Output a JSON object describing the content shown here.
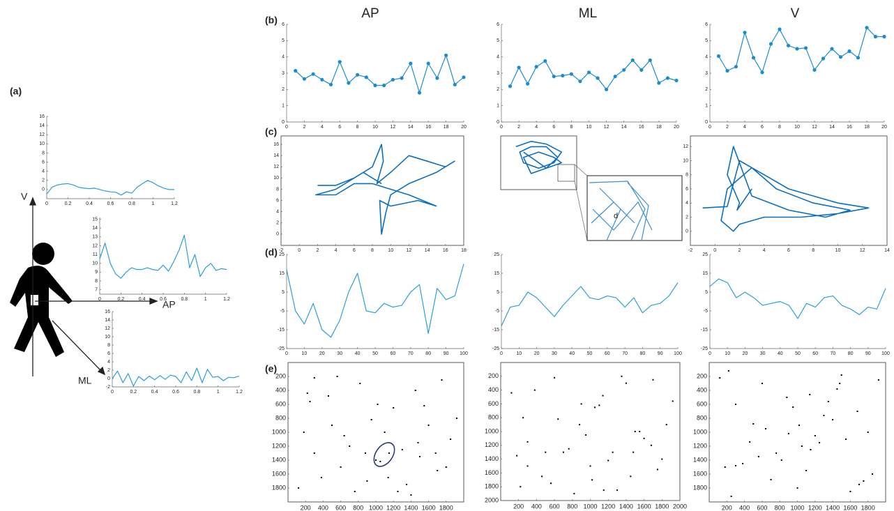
{
  "panel_labels": [
    "(a)",
    "(b)",
    "(c)",
    "(d)",
    "(e)"
  ],
  "column_titles": [
    "AP",
    "ML",
    "V"
  ],
  "axis_labels": [
    "V",
    "AP",
    "ML"
  ],
  "chart_data": [
    {
      "type": "line",
      "color": "#2a9fd6",
      "x": [
        0,
        0.05,
        0.1,
        0.15,
        0.2,
        0.25,
        0.3,
        0.35,
        0.4,
        0.45,
        0.5,
        0.55,
        0.6,
        0.65,
        0.7,
        0.75,
        0.8,
        0.85,
        0.9,
        0.95,
        1,
        1.05,
        1.1,
        1.15,
        1.2
      ],
      "values": [
        -1,
        0.5,
        1,
        1.2,
        1.3,
        1,
        0.5,
        0.3,
        0.2,
        0.3,
        0,
        -0.3,
        -0.5,
        -0.6,
        -1.2,
        -0.5,
        -0.8,
        0.5,
        1.3,
        2,
        1.5,
        0.8,
        0.3,
        0,
        0
      ],
      "xlim": [
        0,
        1.2
      ],
      "ylim": [
        -2,
        16
      ],
      "xticks": [
        0,
        0.2,
        0.4,
        0.6,
        0.8,
        1,
        1.2
      ],
      "yticks": [
        0,
        2,
        4,
        6,
        8,
        10,
        12,
        14,
        16
      ]
    },
    {
      "type": "line",
      "color": "#2a9fd6",
      "x": [
        0,
        0.05,
        0.1,
        0.15,
        0.2,
        0.25,
        0.3,
        0.35,
        0.4,
        0.45,
        0.5,
        0.55,
        0.6,
        0.65,
        0.7,
        0.75,
        0.8,
        0.85,
        0.9,
        0.95,
        1,
        1.05,
        1.1,
        1.15,
        1.2
      ],
      "values": [
        10.5,
        12.3,
        10,
        8.8,
        8.3,
        9,
        9.5,
        9.3,
        9.3,
        9.5,
        9.3,
        9.2,
        9.8,
        9.1,
        10.2,
        11.5,
        13.2,
        9.5,
        11,
        8.5,
        9.5,
        10,
        9.2,
        9.4,
        9.3
      ],
      "xlim": [
        0,
        1.2
      ],
      "ylim": [
        6.5,
        15.2
      ],
      "xticks": [
        0,
        0.2,
        0.4,
        0.6,
        0.8,
        1,
        1.2
      ],
      "yticks": [
        7,
        8,
        9,
        10,
        11,
        12,
        13,
        14,
        15
      ]
    },
    {
      "type": "line",
      "color": "#2a9fd6",
      "x": [
        0,
        0.05,
        0.1,
        0.15,
        0.2,
        0.25,
        0.3,
        0.35,
        0.4,
        0.45,
        0.5,
        0.55,
        0.6,
        0.65,
        0.7,
        0.75,
        0.8,
        0.85,
        0.9,
        0.95,
        1,
        1.05,
        1.1,
        1.15,
        1.2
      ],
      "values": [
        0,
        1.8,
        -1,
        1.2,
        -1.8,
        0.5,
        -0.5,
        0.6,
        -0.3,
        0.7,
        -0.2,
        0.8,
        0.5,
        -1,
        1.6,
        -0.5,
        2.5,
        -1,
        2.2,
        0.3,
        0.5,
        -0.5,
        0.3,
        0.2,
        0.6
      ],
      "xlim": [
        0,
        1.2
      ],
      "ylim": [
        -2,
        16
      ],
      "xticks": [
        0,
        0.2,
        0.4,
        0.6,
        0.8,
        1,
        1.2
      ],
      "yticks": [
        -2,
        0,
        2,
        4,
        6,
        8,
        10,
        12,
        14,
        16
      ]
    },
    {
      "type": "line",
      "markers": true,
      "color": "#1a8ccf",
      "x": [
        1,
        2,
        3,
        4,
        5,
        6,
        7,
        8,
        9,
        10,
        11,
        12,
        13,
        14,
        15,
        16,
        17,
        18,
        19,
        20
      ],
      "values": [
        3.15,
        2.65,
        2.95,
        2.6,
        2.3,
        3.7,
        2.4,
        2.9,
        2.75,
        2.25,
        2.25,
        2.6,
        2.7,
        3.6,
        1.8,
        3.6,
        2.7,
        4.1,
        2.3,
        2.75
      ],
      "xlim": [
        0,
        20
      ],
      "ylim": [
        0,
        6
      ],
      "xticks": [
        0,
        2,
        4,
        6,
        8,
        10,
        12,
        14,
        16,
        18,
        20
      ],
      "yticks": [
        0,
        1,
        2,
        3,
        4,
        5,
        6
      ]
    },
    {
      "type": "line",
      "markers": true,
      "color": "#1a8ccf",
      "x": [
        1,
        2,
        3,
        4,
        5,
        6,
        7,
        8,
        9,
        10,
        11,
        12,
        13,
        14,
        15,
        16,
        17,
        18,
        19,
        20
      ],
      "values": [
        2.2,
        3.35,
        2.35,
        3.4,
        3.75,
        2.8,
        2.85,
        2.95,
        2.5,
        3.05,
        2.7,
        2.0,
        2.8,
        3.2,
        3.8,
        3.2,
        3.8,
        2.4,
        2.7,
        2.55
      ],
      "xlim": [
        0,
        20
      ],
      "ylim": [
        0,
        6
      ],
      "xticks": [
        0,
        2,
        4,
        6,
        8,
        10,
        12,
        14,
        16,
        18,
        20
      ],
      "yticks": [
        0,
        1,
        2,
        3,
        4,
        5,
        6
      ]
    },
    {
      "type": "line",
      "markers": true,
      "color": "#1a8ccf",
      "x": [
        1,
        2,
        3,
        4,
        5,
        6,
        7,
        8,
        9,
        10,
        11,
        12,
        13,
        14,
        15,
        16,
        17,
        18,
        19,
        20
      ],
      "values": [
        4.05,
        3.15,
        3.4,
        5.5,
        3.95,
        3.05,
        4.8,
        5.7,
        4.7,
        4.5,
        4.55,
        3.2,
        3.9,
        4.5,
        4.0,
        4.35,
        3.95,
        5.8,
        5.25,
        5.25
      ],
      "xlim": [
        0,
        20
      ],
      "ylim": [
        0,
        6
      ],
      "xticks": [
        0,
        2,
        4,
        6,
        8,
        10,
        12,
        14,
        16,
        18,
        20
      ],
      "yticks": [
        0,
        1,
        2,
        3,
        4,
        5,
        6
      ]
    },
    {
      "type": "line",
      "box": true,
      "color": "#0b6fc0",
      "x": [
        2,
        4,
        6,
        8,
        9,
        9.2,
        8.5,
        10,
        12,
        14,
        16,
        17,
        15,
        12,
        10,
        9.5,
        9,
        8.8,
        10,
        13,
        15,
        12,
        10,
        8,
        6,
        4,
        1.8,
        4,
        7,
        9
      ],
      "values": [
        8.7,
        8.7,
        10,
        12,
        16,
        13,
        9,
        11,
        14,
        13,
        12,
        13,
        11,
        9,
        7,
        4,
        0,
        6,
        5,
        6,
        5,
        7,
        8,
        9,
        9,
        7,
        7,
        8,
        11,
        9
      ],
      "xlim": [
        -2,
        18
      ],
      "ylim": [
        -2,
        17.5
      ],
      "xticks": [
        -2,
        0,
        2,
        4,
        6,
        8,
        10,
        12,
        14,
        16,
        18
      ],
      "yticks": [
        0,
        2,
        4,
        6,
        8,
        10,
        12,
        14,
        16
      ]
    },
    {
      "type": "line",
      "box": true,
      "color": "#0b6fc0",
      "annotation": "d",
      "x": [
        2,
        4,
        6,
        8,
        7,
        5,
        3,
        2.5,
        4,
        6,
        7.5,
        6,
        4,
        3,
        5,
        7,
        8,
        6,
        4,
        3
      ],
      "values": [
        8,
        9,
        8.5,
        7,
        5,
        4,
        5,
        7,
        8,
        8,
        6,
        4,
        3,
        6,
        7,
        6,
        5,
        4,
        6,
        7
      ],
      "xlim": [
        0,
        10
      ],
      "ylim": [
        0,
        10
      ]
    },
    {
      "type": "line",
      "box": true,
      "color": "#0b6fc0",
      "x": [
        -1,
        1,
        2,
        4,
        6,
        8,
        10,
        12.5,
        10,
        7,
        4,
        2,
        1.5,
        0.5,
        1,
        3,
        5,
        8,
        11,
        9,
        6,
        3,
        1.5,
        1,
        2,
        1.8,
        3
      ],
      "values": [
        3.3,
        3.5,
        10,
        8,
        6,
        5,
        4,
        3.3,
        2.5,
        2,
        2,
        1,
        0,
        1.5,
        6,
        9,
        6,
        4,
        3,
        2,
        3,
        5,
        12,
        8,
        4,
        3,
        6
      ],
      "xlim": [
        -2,
        14
      ],
      "ylim": [
        -2,
        13.5
      ],
      "xticks": [
        -2,
        0,
        2,
        4,
        6,
        8,
        10,
        12,
        14
      ],
      "yticks": [
        0,
        2,
        4,
        6,
        8,
        10,
        12
      ]
    },
    {
      "type": "line",
      "color": "#2a9fd6",
      "x": [
        0,
        5,
        10,
        15,
        20,
        25,
        30,
        35,
        40,
        45,
        50,
        55,
        60,
        65,
        70,
        75,
        80,
        85,
        90,
        95,
        100
      ],
      "values": [
        17,
        -5,
        -12,
        -1,
        -15,
        -19,
        -10,
        5,
        15,
        -5,
        -6,
        -1,
        -3,
        -2,
        5,
        9,
        -17,
        7,
        1,
        3,
        20
      ],
      "xlim": [
        0,
        100
      ],
      "ylim": [
        -25,
        25
      ],
      "xticks": [
        0,
        10,
        20,
        30,
        40,
        50,
        60,
        70,
        80,
        90,
        100
      ],
      "yticks": [
        -25,
        -15,
        -5,
        5,
        15,
        25
      ]
    },
    {
      "type": "line",
      "color": "#2a9fd6",
      "x": [
        0,
        5,
        10,
        15,
        20,
        25,
        30,
        35,
        40,
        45,
        50,
        55,
        60,
        65,
        70,
        75,
        80,
        85,
        90,
        95,
        100
      ],
      "values": [
        -13,
        -3,
        -2,
        5,
        2,
        -3,
        -8,
        -2,
        3,
        8,
        2,
        1,
        3,
        2,
        -3,
        2,
        -6,
        -2,
        -1,
        3,
        10
      ],
      "xlim": [
        0,
        100
      ],
      "ylim": [
        -25,
        25
      ],
      "xticks": [
        0,
        10,
        20,
        30,
        40,
        50,
        60,
        70,
        80,
        90,
        100
      ],
      "yticks": [
        -25,
        -15,
        -5,
        5,
        15,
        25
      ]
    },
    {
      "type": "line",
      "color": "#2a9fd6",
      "x": [
        0,
        5,
        10,
        15,
        20,
        25,
        30,
        35,
        40,
        45,
        50,
        55,
        60,
        65,
        70,
        75,
        80,
        85,
        90,
        95,
        100
      ],
      "values": [
        8,
        12,
        10,
        2,
        5,
        2,
        -2,
        -1,
        0,
        -2,
        -9,
        -1,
        -3,
        2,
        3,
        -2,
        -4,
        -7,
        -3,
        -4,
        7
      ],
      "xlim": [
        0,
        100
      ],
      "ylim": [
        -25,
        25
      ],
      "xticks": [
        0,
        10,
        20,
        30,
        40,
        50,
        60,
        70,
        80,
        90,
        100
      ],
      "yticks": [
        -25,
        -15,
        -5,
        5,
        15,
        25
      ]
    },
    {
      "type": "scatter",
      "box": true,
      "y_inverted": true,
      "color": "#000000",
      "x": [
        120,
        250,
        300,
        460,
        500,
        600,
        700,
        820,
        900,
        950,
        1000,
        1100,
        1150,
        1200,
        1300,
        1350,
        1450,
        1500,
        1600,
        1700,
        1750,
        1850,
        180,
        380,
        560,
        760,
        1050,
        1250,
        1550,
        1800,
        640,
        1020,
        1400,
        1680,
        300,
        880,
        1140,
        1480,
        1920,
        220
      ],
      "values": [
        1800,
        560,
        1300,
        480,
        900,
        1500,
        1200,
        300,
        1700,
        820,
        1400,
        1000,
        1300,
        650,
        1250,
        1750,
        400,
        1350,
        900,
        1550,
        250,
        1100,
        1000,
        1650,
        200,
        1850,
        1420,
        1850,
        620,
        1500,
        1050,
        600,
        1900,
        1300,
        220,
        1300,
        1650,
        1150,
        800,
        440
      ],
      "xlim": [
        0,
        2000
      ],
      "ylim": [
        0,
        2000
      ],
      "xticks": [
        200,
        400,
        600,
        800,
        1000,
        1200,
        1400,
        1600,
        1800
      ],
      "yticks": [
        200,
        400,
        600,
        800,
        1000,
        1200,
        1400,
        1600,
        1800
      ]
    },
    {
      "type": "scatter",
      "box": true,
      "y_inverted": true,
      "color": "#000000",
      "x": [
        120,
        250,
        300,
        460,
        500,
        600,
        700,
        820,
        900,
        950,
        1000,
        1100,
        1150,
        1200,
        1300,
        1350,
        1450,
        1500,
        1600,
        1700,
        1750,
        1850,
        180,
        380,
        560,
        760,
        1050,
        1250,
        1550,
        1800,
        640,
        1020,
        1400,
        1680,
        300,
        880,
        1140,
        1480,
        1920,
        220
      ],
      "values": [
        440,
        800,
        1150,
        1650,
        1300,
        220,
        1300,
        1900,
        600,
        1050,
        1500,
        620,
        1850,
        1420,
        1850,
        200,
        1650,
        1000,
        1100,
        250,
        1550,
        900,
        1350,
        400,
        1750,
        1250,
        650,
        1300,
        1000,
        1400,
        820,
        1700,
        300,
        1200,
        1500,
        900,
        480,
        1300,
        560,
        1800
      ],
      "xlim": [
        0,
        2000
      ],
      "ylim": [
        0,
        2000
      ],
      "xticks": [
        200,
        400,
        600,
        800,
        1000,
        1200,
        1400,
        1600,
        1800,
        2000
      ],
      "yticks": [
        200,
        400,
        600,
        800,
        1000,
        1200,
        1400,
        1600,
        1800,
        2000
      ]
    },
    {
      "type": "scatter",
      "box": true,
      "y_inverted": true,
      "color": "#000000",
      "x": [
        120,
        250,
        300,
        460,
        500,
        600,
        700,
        820,
        900,
        950,
        1000,
        1100,
        1150,
        1200,
        1300,
        1350,
        1450,
        1500,
        1600,
        1700,
        1750,
        1850,
        180,
        380,
        560,
        760,
        1050,
        1250,
        1550,
        1800,
        640,
        1020,
        1400,
        1680,
        300,
        880,
        1140,
        1480,
        1920,
        220
      ],
      "values": [
        220,
        1920,
        1480,
        1140,
        880,
        300,
        1680,
        1400,
        1020,
        640,
        1800,
        1550,
        1250,
        1050,
        760,
        560,
        380,
        180,
        1850,
        1750,
        1700,
        1600,
        1500,
        1450,
        1350,
        1300,
        1200,
        1150,
        1100,
        1000,
        950,
        900,
        820,
        700,
        600,
        500,
        460,
        300,
        250,
        120
      ],
      "xlim": [
        0,
        2000
      ],
      "ylim": [
        0,
        2000
      ],
      "xticks": [
        200,
        400,
        600,
        800,
        1000,
        1200,
        1400,
        1600,
        1800
      ],
      "yticks": [
        200,
        400,
        600,
        800,
        1000,
        1200,
        1400,
        1600,
        1800
      ]
    }
  ]
}
